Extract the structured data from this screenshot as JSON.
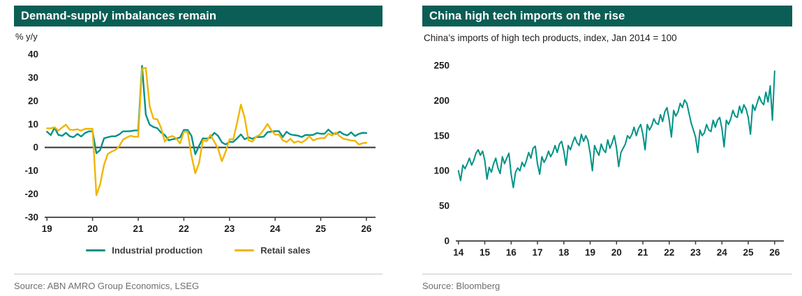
{
  "colors": {
    "header_bg": "#0b5e55",
    "teal": "#009286",
    "yellow": "#f0b500",
    "axis": "#3c3c3b",
    "tick_text": "#1d1d1b",
    "source_text": "#6f6f6f",
    "divider": "#c9c9c9"
  },
  "chart_data": [
    {
      "type": "line",
      "title": "Demand-supply imbalances remain",
      "unit_label": "% y/y",
      "frequency": "monthly",
      "x_start_year": 2019,
      "xlim": [
        2018.95,
        2026.2
      ],
      "xticks": [
        2019,
        2020,
        2021,
        2022,
        2023,
        2024,
        2025,
        2026
      ],
      "xtick_labels": [
        "19",
        "20",
        "21",
        "22",
        "23",
        "24",
        "25",
        "26"
      ],
      "ylim": [
        -30,
        40
      ],
      "yticks": [
        40,
        30,
        20,
        10,
        0,
        -10,
        -20,
        -30
      ],
      "grid": false,
      "zero_line": true,
      "legend_position": "bottom",
      "series": [
        {
          "name": "Industrial production",
          "color": "#009286",
          "values": [
            6.8,
            5.3,
            8.5,
            5.4,
            5.0,
            6.3,
            4.8,
            4.4,
            5.8,
            4.7,
            6.2,
            6.9,
            6.9,
            -2.5,
            -1.1,
            3.9,
            4.4,
            4.8,
            4.8,
            5.6,
            6.9,
            6.9,
            7.0,
            7.3,
            7.3,
            35.1,
            14.1,
            9.8,
            8.8,
            8.3,
            6.4,
            5.3,
            3.1,
            3.5,
            3.8,
            4.3,
            7.5,
            7.5,
            5.0,
            -2.9,
            0.7,
            3.9,
            3.8,
            4.2,
            6.3,
            5.0,
            2.2,
            1.3,
            2.4,
            2.4,
            3.9,
            5.6,
            3.5,
            4.4,
            3.7,
            4.5,
            4.5,
            4.6,
            6.6,
            6.8,
            7.0,
            7.0,
            4.5,
            6.7,
            5.6,
            5.3,
            5.1,
            4.5,
            5.4,
            5.3,
            5.4,
            6.2,
            5.9,
            5.9,
            7.7,
            6.1,
            5.8,
            6.8,
            5.7,
            5.2,
            6.5,
            4.9,
            5.8,
            6.3,
            6.2
          ]
        },
        {
          "name": "Retail sales",
          "color": "#f0b500",
          "values": [
            8.2,
            8.2,
            8.7,
            7.2,
            8.6,
            9.8,
            7.6,
            7.5,
            7.8,
            7.2,
            8.0,
            8.0,
            8.0,
            -20.5,
            -15.8,
            -7.5,
            -2.8,
            -1.8,
            -1.1,
            0.5,
            3.3,
            4.3,
            5.0,
            4.6,
            4.6,
            33.8,
            34.2,
            17.7,
            12.4,
            12.1,
            8.5,
            2.5,
            4.4,
            4.9,
            3.9,
            1.7,
            6.7,
            6.7,
            -3.5,
            -11.1,
            -6.7,
            3.1,
            2.7,
            5.4,
            2.5,
            -0.5,
            -5.9,
            -1.8,
            3.5,
            3.5,
            10.6,
            18.4,
            12.7,
            3.1,
            2.5,
            4.6,
            5.5,
            7.6,
            10.1,
            7.4,
            5.5,
            5.5,
            3.1,
            2.3,
            3.7,
            2.0,
            2.7,
            2.1,
            3.2,
            4.8,
            3.0,
            3.7,
            4.0,
            4.0,
            5.9,
            5.1,
            6.4,
            4.8,
            3.7,
            3.4,
            3.0,
            2.9,
            1.3,
            1.8,
            2.0
          ]
        }
      ],
      "source": "Source: ABN AMRO Group Economics, LSEG"
    },
    {
      "type": "line",
      "title": "China high tech imports on the rise",
      "subtitle": "China’s imports of high tech products, index, Jan 2014 = 100",
      "frequency": "monthly",
      "x_start_year": 2014,
      "xlim": [
        2013.9,
        2026.35
      ],
      "xticks": [
        2014,
        2015,
        2016,
        2017,
        2018,
        2019,
        2020,
        2021,
        2022,
        2023,
        2024,
        2025,
        2026
      ],
      "xtick_labels": [
        "14",
        "15",
        "16",
        "17",
        "18",
        "19",
        "20",
        "21",
        "22",
        "23",
        "24",
        "25",
        "26"
      ],
      "ylim": [
        0,
        250
      ],
      "yticks": [
        250,
        200,
        150,
        100,
        50,
        0
      ],
      "grid": false,
      "zero_line": false,
      "legend_position": "none",
      "series": [
        {
          "name": "China high tech imports index",
          "color": "#009286",
          "values": [
            100,
            86,
            108,
            103,
            110,
            118,
            108,
            115,
            125,
            130,
            122,
            128,
            115,
            88,
            105,
            98,
            110,
            118,
            104,
            96,
            120,
            110,
            118,
            125,
            95,
            76,
            98,
            104,
            100,
            112,
            106,
            115,
            126,
            118,
            132,
            135,
            110,
            95,
            120,
            112,
            118,
            128,
            120,
            126,
            136,
            126,
            138,
            142,
            128,
            108,
            136,
            130,
            140,
            148,
            140,
            136,
            152,
            142,
            150,
            143,
            125,
            100,
            136,
            128,
            122,
            138,
            130,
            126,
            144,
            132,
            140,
            150,
            132,
            106,
            126,
            132,
            138,
            150,
            146,
            152,
            162,
            150,
            160,
            166,
            152,
            130,
            166,
            158,
            164,
            174,
            168,
            166,
            180,
            170,
            184,
            190,
            172,
            148,
            186,
            178,
            184,
            196,
            190,
            201,
            196,
            182,
            168,
            158,
            148,
            126,
            158,
            150,
            154,
            166,
            158,
            156,
            172,
            162,
            172,
            176,
            160,
            134,
            172,
            166,
            174,
            186,
            178,
            176,
            192,
            182,
            194,
            188,
            176,
            152,
            194,
            186,
            196,
            206,
            198,
            194,
            212,
            198,
            221,
            172,
            242
          ]
        }
      ],
      "source": "Source: Bloomberg"
    }
  ]
}
